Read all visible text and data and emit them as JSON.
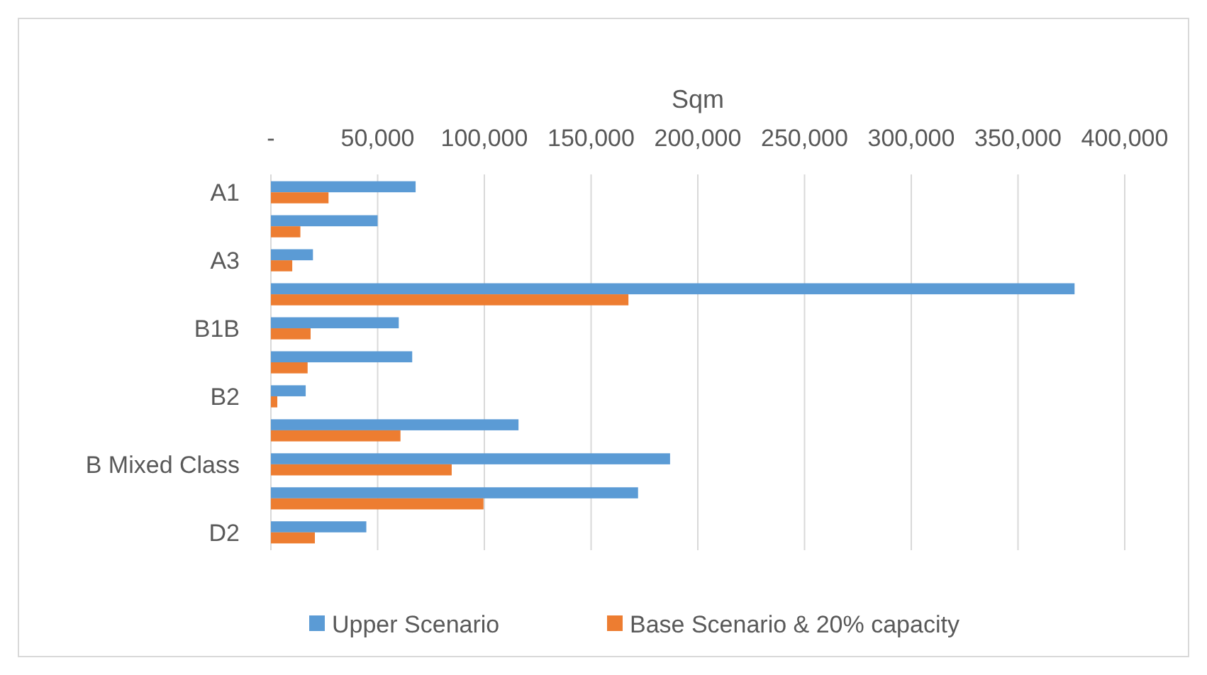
{
  "chart_data": {
    "type": "bar",
    "orientation": "horizontal",
    "xlabel": "Sqm",
    "categories": [
      "A1",
      null,
      "A3",
      null,
      "B1B",
      null,
      "B2",
      null,
      "B Mixed Class",
      null,
      "D2"
    ],
    "series": [
      {
        "name": "Upper Scenario",
        "color": "#5b9bd5",
        "values": [
          67800,
          50000,
          19700,
          376500,
          59900,
          66200,
          16300,
          116000,
          187000,
          172000,
          44700
        ]
      },
      {
        "name": "Base Scenario & 20% capacity",
        "color": "#ed7d31",
        "values": [
          27000,
          13800,
          10000,
          167500,
          18600,
          17200,
          3000,
          60700,
          84700,
          99600,
          20600
        ]
      }
    ],
    "xlim": [
      0,
      400000
    ],
    "xticks": [
      {
        "value": 0,
        "label": "-"
      },
      {
        "value": 50000,
        "label": "50,000"
      },
      {
        "value": 100000,
        "label": "100,000"
      },
      {
        "value": 150000,
        "label": "150,000"
      },
      {
        "value": 200000,
        "label": "200,000"
      },
      {
        "value": 250000,
        "label": "250,000"
      },
      {
        "value": 300000,
        "label": "300,000"
      },
      {
        "value": 350000,
        "label": "350,000"
      },
      {
        "value": 400000,
        "label": "400,000"
      }
    ],
    "grid": "x",
    "legend": "bottom"
  }
}
